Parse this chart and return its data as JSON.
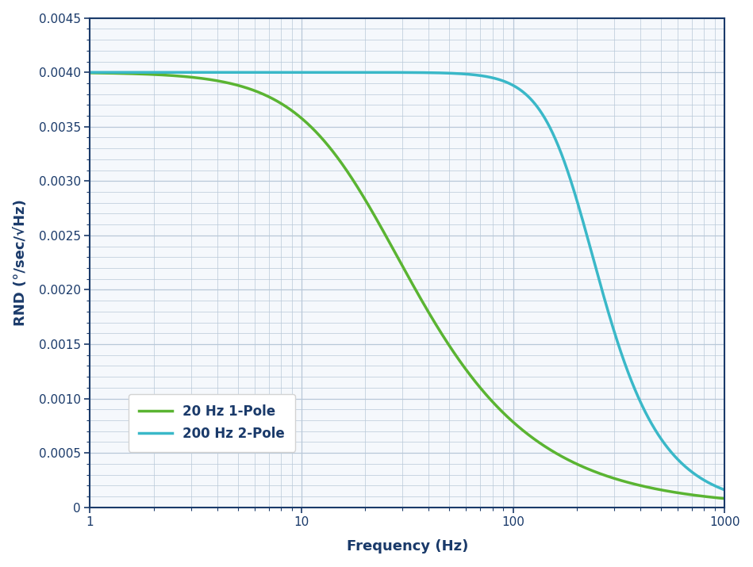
{
  "title": "",
  "xlabel": "Frequency (Hz)",
  "ylabel": "RND (°/sec/√Hz)",
  "xlim": [
    1,
    1000
  ],
  "ylim": [
    0,
    0.0045
  ],
  "yticks": [
    0,
    0.0005,
    0.001,
    0.0015,
    0.002,
    0.0025,
    0.003,
    0.0035,
    0.004,
    0.0045
  ],
  "ytick_labels": [
    "0",
    "0.0005",
    "0.0010",
    "0.0015",
    "0.0020",
    "0.0025",
    "0.0030",
    "0.0035",
    "0.0040",
    "0.0045"
  ],
  "curve1_color": "#5ab432",
  "curve2_color": "#3ab8c8",
  "curve1_label": "20 Hz 1-Pole",
  "curve2_label": "200 Hz 2-Pole",
  "curve1_fc": 20.0,
  "curve1_order": 1,
  "curve2_fc": 200.0,
  "curve2_order": 2,
  "rnd0": 0.004,
  "background_color": "#f5f8fc",
  "grid_color": "#b8c8d8",
  "axes_color": "#1a3a6a",
  "label_fontsize": 13,
  "tick_fontsize": 11,
  "legend_fontsize": 12,
  "line_width": 2.5
}
